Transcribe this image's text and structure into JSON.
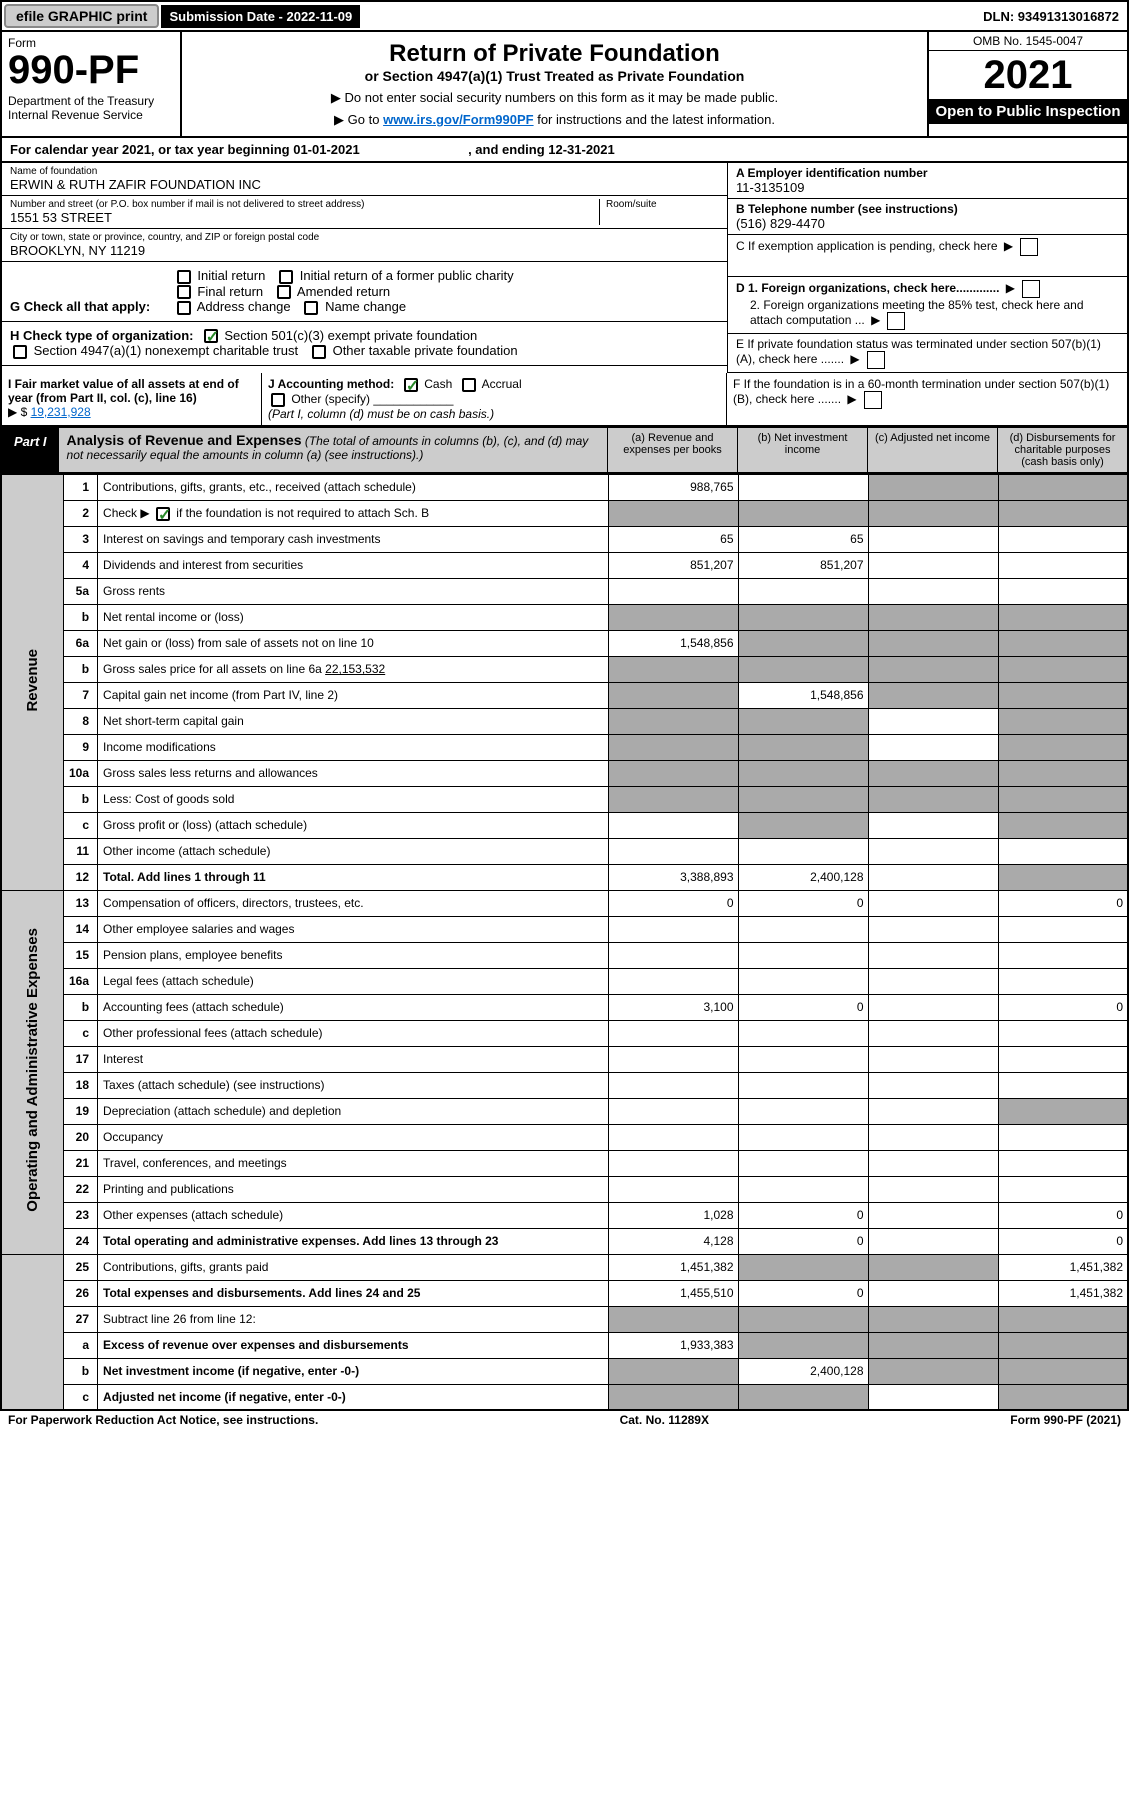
{
  "top": {
    "efile": "efile GRAPHIC print",
    "submission": "Submission Date - 2022-11-09",
    "dln": "DLN: 93491313016872"
  },
  "header": {
    "form_label": "Form",
    "form_number": "990-PF",
    "dept": "Department of the Treasury\nInternal Revenue Service",
    "title": "Return of Private Foundation",
    "subtitle": "or Section 4947(a)(1) Trust Treated as Private Foundation",
    "note1": "▶ Do not enter social security numbers on this form as it may be made public.",
    "note2": "▶ Go to ",
    "link": "www.irs.gov/Form990PF",
    "note3": " for instructions and the latest information.",
    "omb": "OMB No. 1545-0047",
    "year": "2021",
    "open": "Open to Public Inspection"
  },
  "calyear": "For calendar year 2021, or tax year beginning 01-01-2021                              , and ending 12-31-2021",
  "info": {
    "name_label": "Name of foundation",
    "name": "ERWIN & RUTH ZAFIR FOUNDATION INC",
    "addr_label": "Number and street (or P.O. box number if mail is not delivered to street address)",
    "addr": "1551 53 STREET",
    "room_label": "Room/suite",
    "city_label": "City or town, state or province, country, and ZIP or foreign postal code",
    "city": "BROOKLYN, NY  11219",
    "ein_label": "A Employer identification number",
    "ein": "11-3135109",
    "tel_label": "B Telephone number (see instructions)",
    "tel": "(516) 829-4470",
    "c_label": "C If exemption application is pending, check here",
    "d1": "D 1. Foreign organizations, check here.............",
    "d2": "2. Foreign organizations meeting the 85% test, check here and attach computation ...",
    "e_label": "E  If private foundation status was terminated under section 507(b)(1)(A), check here .......",
    "f_label": "F  If the foundation is in a 60-month termination under section 507(b)(1)(B), check here ......."
  },
  "g": {
    "label": "G Check all that apply:",
    "opts": [
      "Initial return",
      "Final return",
      "Address change",
      "Initial return of a former public charity",
      "Amended return",
      "Name change"
    ]
  },
  "h": {
    "label": "H Check type of organization:",
    "opt1": "Section 501(c)(3) exempt private foundation",
    "opt2": "Section 4947(a)(1) nonexempt charitable trust",
    "opt3": "Other taxable private foundation"
  },
  "i": {
    "label": "I Fair market value of all assets at end of year (from Part II, col. (c), line 16)",
    "val": "19,231,928"
  },
  "j": {
    "label": "J Accounting method:",
    "cash": "Cash",
    "accrual": "Accrual",
    "other": "Other (specify)",
    "note": "(Part I, column (d) must be on cash basis.)"
  },
  "part1": {
    "label": "Part I",
    "title": "Analysis of Revenue and Expenses",
    "desc": "(The total of amounts in columns (b), (c), and (d) may not necessarily equal the amounts in column (a) (see instructions).)",
    "col_a": "(a)   Revenue and expenses per books",
    "col_b": "(b)   Net investment income",
    "col_c": "(c)   Adjusted net income",
    "col_d": "(d)   Disbursements for charitable purposes (cash basis only)"
  },
  "vlabels": {
    "rev": "Revenue",
    "exp": "Operating and Administrative Expenses"
  },
  "rows": [
    {
      "n": "1",
      "d": "Contributions, gifts, grants, etc., received (attach schedule)",
      "a": "988,765",
      "shade_b": false,
      "shade_c": true,
      "shade_d": true
    },
    {
      "n": "2",
      "d": "Check ▶ ☑ if the foundation is not required to attach Sch. B",
      "shade_a": true,
      "shade_b": true,
      "shade_c": true,
      "shade_d": true,
      "checked": true
    },
    {
      "n": "3",
      "d": "Interest on savings and temporary cash investments",
      "a": "65",
      "b": "65"
    },
    {
      "n": "4",
      "d": "Dividends and interest from securities",
      "a": "851,207",
      "b": "851,207"
    },
    {
      "n": "5a",
      "d": "Gross rents"
    },
    {
      "n": "b",
      "d": "Net rental income or (loss)",
      "shade_a": true,
      "shade_b": true,
      "shade_c": true,
      "shade_d": true,
      "inline": true
    },
    {
      "n": "6a",
      "d": "Net gain or (loss) from sale of assets not on line 10",
      "a": "1,548,856",
      "shade_b": true,
      "shade_c": true,
      "shade_d": true
    },
    {
      "n": "b",
      "d": "Gross sales price for all assets on line 6a",
      "inline_val": "22,153,532",
      "shade_a": true,
      "shade_b": true,
      "shade_c": true,
      "shade_d": true
    },
    {
      "n": "7",
      "d": "Capital gain net income (from Part IV, line 2)",
      "shade_a": true,
      "b": "1,548,856",
      "shade_c": true,
      "shade_d": true
    },
    {
      "n": "8",
      "d": "Net short-term capital gain",
      "shade_a": true,
      "shade_b": true,
      "shade_d": true
    },
    {
      "n": "9",
      "d": "Income modifications",
      "shade_a": true,
      "shade_b": true,
      "shade_d": true
    },
    {
      "n": "10a",
      "d": "Gross sales less returns and allowances",
      "shade_a": true,
      "shade_b": true,
      "shade_c": true,
      "shade_d": true,
      "inline": true
    },
    {
      "n": "b",
      "d": "Less: Cost of goods sold",
      "shade_a": true,
      "shade_b": true,
      "shade_c": true,
      "shade_d": true,
      "inline": true
    },
    {
      "n": "c",
      "d": "Gross profit or (loss) (attach schedule)",
      "shade_b": true,
      "shade_d": true
    },
    {
      "n": "11",
      "d": "Other income (attach schedule)"
    },
    {
      "n": "12",
      "d": "Total. Add lines 1 through 11",
      "a": "3,388,893",
      "b": "2,400,128",
      "bold": true,
      "shade_d": true
    },
    {
      "n": "13",
      "d": "Compensation of officers, directors, trustees, etc.",
      "a": "0",
      "b": "0",
      "dd": "0"
    },
    {
      "n": "14",
      "d": "Other employee salaries and wages"
    },
    {
      "n": "15",
      "d": "Pension plans, employee benefits"
    },
    {
      "n": "16a",
      "d": "Legal fees (attach schedule)"
    },
    {
      "n": "b",
      "d": "Accounting fees (attach schedule)",
      "a": "3,100",
      "b": "0",
      "dd": "0"
    },
    {
      "n": "c",
      "d": "Other professional fees (attach schedule)"
    },
    {
      "n": "17",
      "d": "Interest"
    },
    {
      "n": "18",
      "d": "Taxes (attach schedule) (see instructions)"
    },
    {
      "n": "19",
      "d": "Depreciation (attach schedule) and depletion",
      "shade_d": true
    },
    {
      "n": "20",
      "d": "Occupancy"
    },
    {
      "n": "21",
      "d": "Travel, conferences, and meetings"
    },
    {
      "n": "22",
      "d": "Printing and publications"
    },
    {
      "n": "23",
      "d": "Other expenses (attach schedule)",
      "a": "1,028",
      "b": "0",
      "dd": "0"
    },
    {
      "n": "24",
      "d": "Total operating and administrative expenses. Add lines 13 through 23",
      "a": "4,128",
      "b": "0",
      "dd": "0",
      "bold": true
    },
    {
      "n": "25",
      "d": "Contributions, gifts, grants paid",
      "a": "1,451,382",
      "shade_b": true,
      "shade_c": true,
      "dd": "1,451,382"
    },
    {
      "n": "26",
      "d": "Total expenses and disbursements. Add lines 24 and 25",
      "a": "1,455,510",
      "b": "0",
      "dd": "1,451,382",
      "bold": true
    },
    {
      "n": "27",
      "d": "Subtract line 26 from line 12:",
      "shade_a": true,
      "shade_b": true,
      "shade_c": true,
      "shade_d": true
    },
    {
      "n": "a",
      "d": "Excess of revenue over expenses and disbursements",
      "a": "1,933,383",
      "shade_b": true,
      "shade_c": true,
      "shade_d": true,
      "bold": true
    },
    {
      "n": "b",
      "d": "Net investment income (if negative, enter -0-)",
      "shade_a": true,
      "b": "2,400,128",
      "shade_c": true,
      "shade_d": true,
      "bold": true
    },
    {
      "n": "c",
      "d": "Adjusted net income (if negative, enter -0-)",
      "shade_a": true,
      "shade_b": true,
      "shade_d": true,
      "bold": true
    }
  ],
  "footer": {
    "left": "For Paperwork Reduction Act Notice, see instructions.",
    "mid": "Cat. No. 11289X",
    "right": "Form 990-PF (2021)"
  }
}
